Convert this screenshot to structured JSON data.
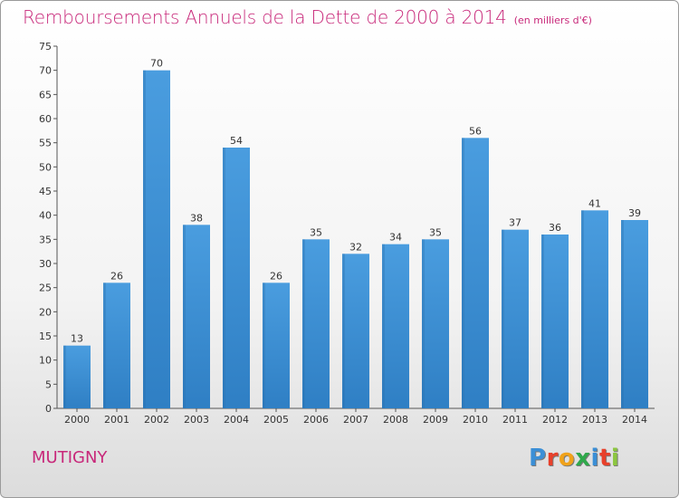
{
  "chart_data": {
    "type": "bar",
    "title": "Remboursements Annuels de la Dette de 2000 à 2014",
    "subtitle": "(en milliers d'€)",
    "categories": [
      "2000",
      "2001",
      "2002",
      "2003",
      "2004",
      "2005",
      "2006",
      "2007",
      "2008",
      "2009",
      "2010",
      "2011",
      "2012",
      "2013",
      "2014"
    ],
    "values": [
      13,
      26,
      70,
      38,
      54,
      26,
      35,
      32,
      34,
      35,
      56,
      37,
      36,
      41,
      39
    ],
    "ylim": [
      0,
      75
    ],
    "yticks": [
      0,
      5,
      10,
      15,
      20,
      25,
      30,
      35,
      40,
      45,
      50,
      55,
      60,
      65,
      70,
      75
    ],
    "grid": false,
    "bar_color": "#4a9ddf",
    "bar_color_dark": "#2f7fc4"
  },
  "footer": {
    "commune": "MUTIGNY",
    "logo": [
      "P",
      "r",
      "o",
      "x",
      "i",
      "t",
      "i"
    ],
    "logo_colors": [
      "#3b8fd6",
      "#e8402a",
      "#f0a21a",
      "#2fa84b",
      "#3b8fd6",
      "#e8402a",
      "#8cc63f"
    ]
  },
  "colors": {
    "accent": "#c8287a"
  }
}
